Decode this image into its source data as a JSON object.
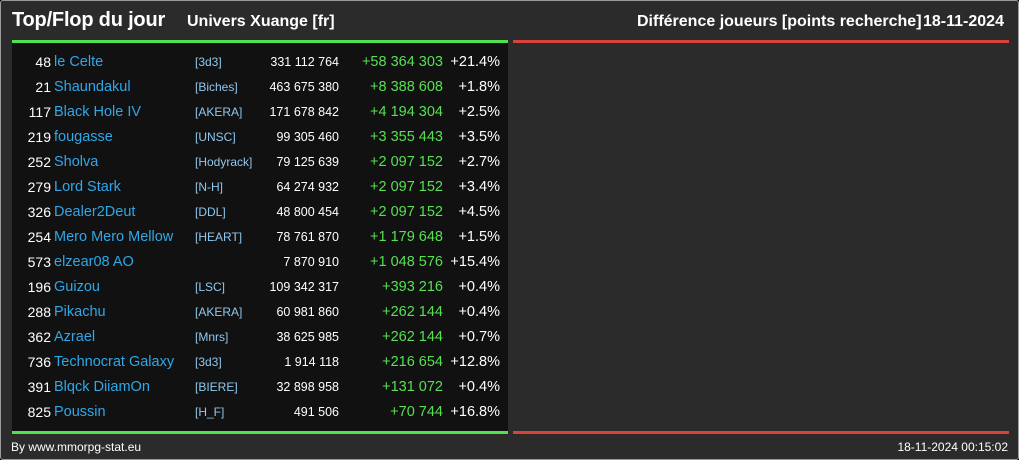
{
  "header": {
    "title": "Top/Flop du jour",
    "subtitle": "Univers Xuange [fr]",
    "right_title": "Différence joueurs [points recherche]",
    "date": "18-11-2024"
  },
  "colors": {
    "top_accent": "#52e04e",
    "flop_accent": "#d9423a",
    "name_link": "#2fa7e8",
    "positive_diff": "#56e052"
  },
  "top_players": [
    {
      "rank": "48",
      "name": "le Celte",
      "alliance": "[3d3]",
      "points": "331 112 764",
      "diff": "+58 364 303",
      "pct": "+21.4%"
    },
    {
      "rank": "21",
      "name": "Shaundakul",
      "alliance": "[Biches]",
      "points": "463 675 380",
      "diff": "+8 388 608",
      "pct": "+1.8%"
    },
    {
      "rank": "117",
      "name": "Black Hole IV",
      "alliance": "[AKERA]",
      "points": "171 678 842",
      "diff": "+4 194 304",
      "pct": "+2.5%"
    },
    {
      "rank": "219",
      "name": "fougasse",
      "alliance": "[UNSC]",
      "points": "99 305 460",
      "diff": "+3 355 443",
      "pct": "+3.5%"
    },
    {
      "rank": "252",
      "name": "Sholva",
      "alliance": "[Hodyrack]",
      "points": "79 125 639",
      "diff": "+2 097 152",
      "pct": "+2.7%"
    },
    {
      "rank": "279",
      "name": "Lord Stark",
      "alliance": "[N-H]",
      "points": "64 274 932",
      "diff": "+2 097 152",
      "pct": "+3.4%"
    },
    {
      "rank": "326",
      "name": "Dealer2Deut",
      "alliance": "[DDL]",
      "points": "48 800 454",
      "diff": "+2 097 152",
      "pct": "+4.5%"
    },
    {
      "rank": "254",
      "name": "Mero Mero Mellow",
      "alliance": "[HEART]",
      "points": "78 761 870",
      "diff": "+1 179 648",
      "pct": "+1.5%"
    },
    {
      "rank": "573",
      "name": "elzear08 AO",
      "alliance": "",
      "points": "7 870 910",
      "diff": "+1 048 576",
      "pct": "+15.4%"
    },
    {
      "rank": "196",
      "name": "Guizou",
      "alliance": "[LSC]",
      "points": "109 342 317",
      "diff": "+393 216",
      "pct": "+0.4%"
    },
    {
      "rank": "288",
      "name": "Pikachu",
      "alliance": "[AKERA]",
      "points": "60 981 860",
      "diff": "+262 144",
      "pct": "+0.4%"
    },
    {
      "rank": "362",
      "name": "Azrael",
      "alliance": "[Mnrs]",
      "points": "38 625 985",
      "diff": "+262 144",
      "pct": "+0.7%"
    },
    {
      "rank": "736",
      "name": "Technocrat Galaxy",
      "alliance": "[3d3]",
      "points": "1 914 118",
      "diff": "+216 654",
      "pct": "+12.8%"
    },
    {
      "rank": "391",
      "name": "Blqck DiiamOn",
      "alliance": "[BIERE]",
      "points": "32 898 958",
      "diff": "+131 072",
      "pct": "+0.4%"
    },
    {
      "rank": "825",
      "name": "Poussin",
      "alliance": "[H_F]",
      "points": "491 506",
      "diff": "+70 744",
      "pct": "+16.8%"
    }
  ],
  "footer": {
    "credit": "By www.mmorpg-stat.eu",
    "timestamp": "18-11-2024 00:15:02"
  }
}
